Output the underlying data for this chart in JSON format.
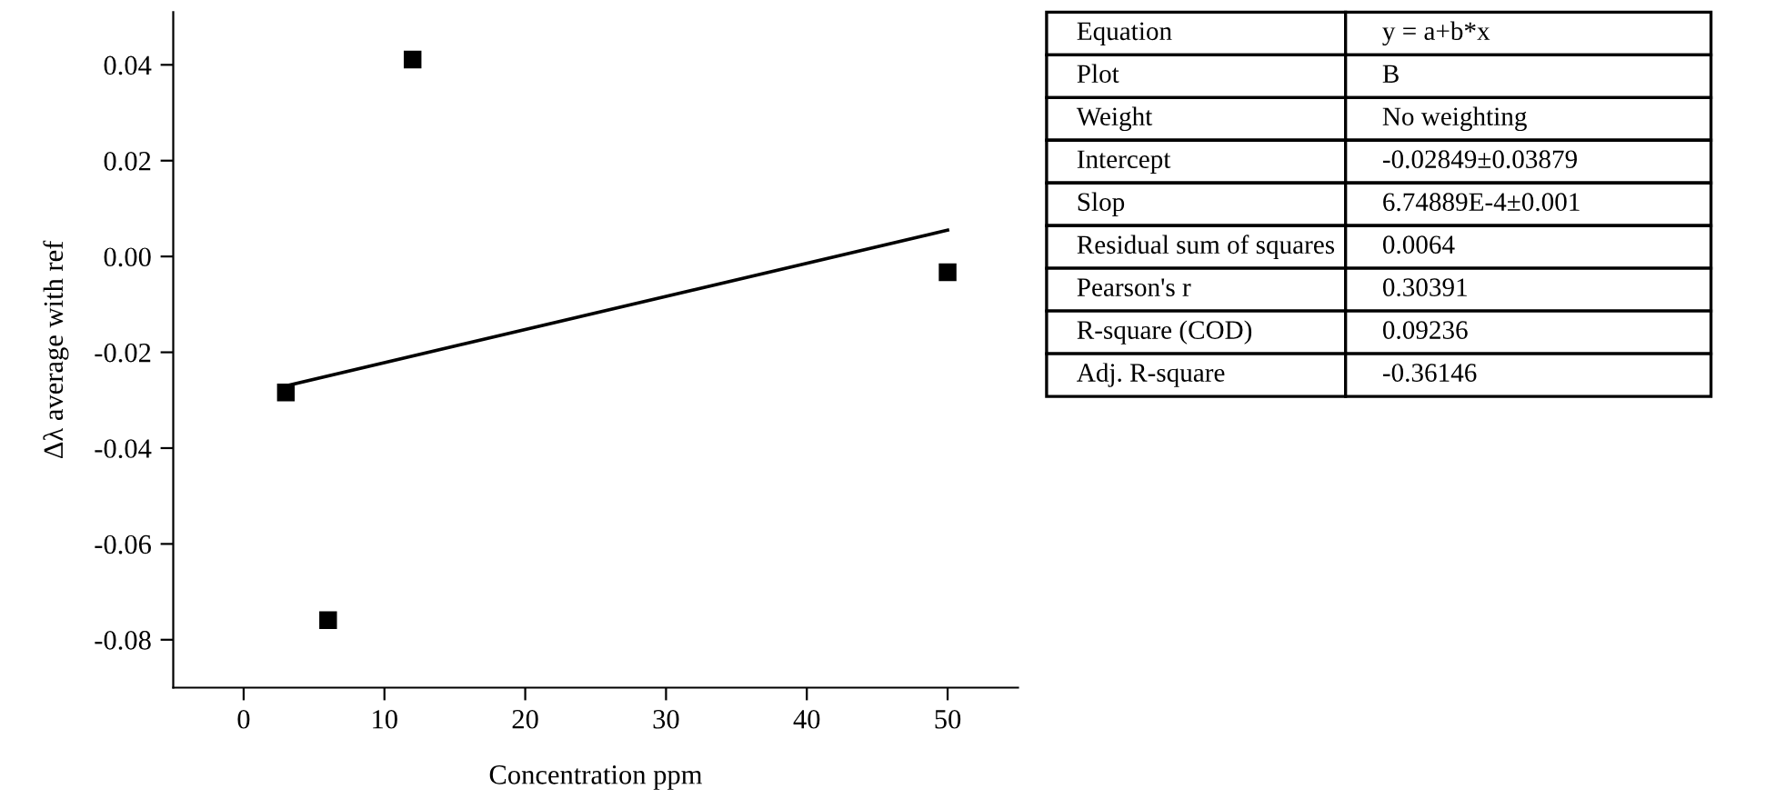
{
  "chart_data": [
    {
      "type": "scatter",
      "xlabel": "Concentration ppm",
      "ylabel": "Δλ average with ref",
      "marker": "square",
      "grid": false,
      "legend": false,
      "xlim": [
        -5,
        55
      ],
      "xticks": [
        0,
        10,
        20,
        30,
        40,
        50
      ],
      "ylim": [
        -0.09,
        0.051
      ],
      "yticks": [
        {
          "value": -0.08,
          "label": "-0.08"
        },
        {
          "value": -0.06,
          "label": "-0.06"
        },
        {
          "value": -0.04,
          "label": "-0.04"
        },
        {
          "value": -0.02,
          "label": "-0.02"
        },
        {
          "value": 0.0,
          "label": "0.00"
        },
        {
          "value": 0.02,
          "label": "0.02"
        },
        {
          "value": 0.04,
          "label": "0.04"
        }
      ],
      "series": [
        {
          "type": "scatter",
          "color": "#000000",
          "x": [
            3,
            6,
            12,
            50
          ],
          "values": [
            -0.0284,
            -0.0759,
            0.0411,
            -0.0033
          ]
        },
        {
          "type": "line",
          "color": "#000000",
          "marker": "none",
          "x": [
            3,
            50
          ],
          "values": [
            -0.027,
            0.0055
          ]
        }
      ]
    },
    {
      "type": "other",
      "annotations": [
        "Equation",
        "y = a+b*x",
        "Plot",
        "B",
        "Weight",
        "No weighting",
        "Intercept",
        "-0.02849±0.03879",
        "Slop",
        "6.74889E-4±0.001",
        "Residual sum of squares",
        "0.0064",
        "Pearson's r",
        "0.30391",
        "R-square (COD)",
        "0.09236",
        "Adj. R-square",
        "-0.36146"
      ]
    }
  ]
}
